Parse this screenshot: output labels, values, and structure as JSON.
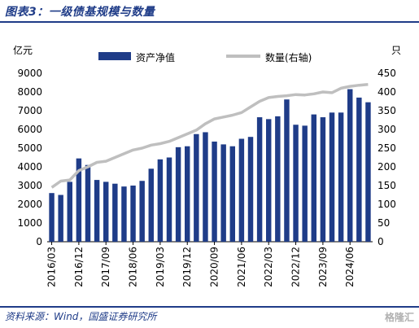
{
  "header": {
    "title": "图表3：一级债基规模与数量"
  },
  "footer": {
    "source": "资料来源：Wind，国盛证券研究所",
    "watermark": "格隆汇"
  },
  "chart_data": {
    "type": "bar",
    "left_unit": "亿元",
    "right_unit": "只",
    "ylim": [
      0,
      9000
    ],
    "y_ticks": [
      0,
      1000,
      2000,
      3000,
      4000,
      5000,
      6000,
      7000,
      8000,
      9000
    ],
    "y2lim": [
      0,
      450
    ],
    "y2_ticks": [
      0,
      50,
      100,
      150,
      200,
      250,
      300,
      350,
      400,
      450
    ],
    "x_tick_labels": [
      "2016/03",
      "2016/12",
      "2017/09",
      "2018/06",
      "2019/03",
      "2019/12",
      "2020/09",
      "2021/06",
      "2022/03",
      "2022/12",
      "2023/09",
      "2024/06"
    ],
    "x_tick_every": 3,
    "categories": [
      "2016/03",
      "2016/06",
      "2016/09",
      "2016/12",
      "2017/03",
      "2017/06",
      "2017/09",
      "2017/12",
      "2018/03",
      "2018/06",
      "2018/09",
      "2018/12",
      "2019/03",
      "2019/06",
      "2019/09",
      "2019/12",
      "2020/03",
      "2020/06",
      "2020/09",
      "2020/12",
      "2021/03",
      "2021/06",
      "2021/09",
      "2021/12",
      "2022/03",
      "2022/06",
      "2022/09",
      "2022/12",
      "2023/03",
      "2023/06",
      "2023/09",
      "2023/12",
      "2024/03",
      "2024/06",
      "2024/09",
      "2024/12"
    ],
    "legend_position": "top",
    "grid": false,
    "colors": {
      "bar": "#1f3c88",
      "line": "#bfbfbf",
      "title": "#1f3c88"
    },
    "series": [
      {
        "name": "资产净值",
        "type": "bar",
        "axis": "left",
        "values": [
          2600,
          2500,
          3200,
          4450,
          4100,
          3300,
          3200,
          3100,
          2950,
          3000,
          3250,
          3900,
          4400,
          4500,
          5050,
          5100,
          5750,
          5850,
          5350,
          5200,
          5100,
          5500,
          5600,
          6650,
          6550,
          6700,
          7600,
          6250,
          6200,
          6800,
          6650,
          6900,
          6900,
          8150,
          7700,
          7450
        ]
      },
      {
        "name": "数量(右轴)",
        "type": "line",
        "axis": "right",
        "values": [
          145,
          162,
          165,
          190,
          200,
          212,
          215,
          225,
          235,
          245,
          250,
          258,
          262,
          268,
          278,
          288,
          298,
          315,
          328,
          333,
          338,
          345,
          360,
          375,
          385,
          388,
          390,
          393,
          392,
          395,
          400,
          398,
          410,
          415,
          418,
          420
        ]
      }
    ]
  }
}
